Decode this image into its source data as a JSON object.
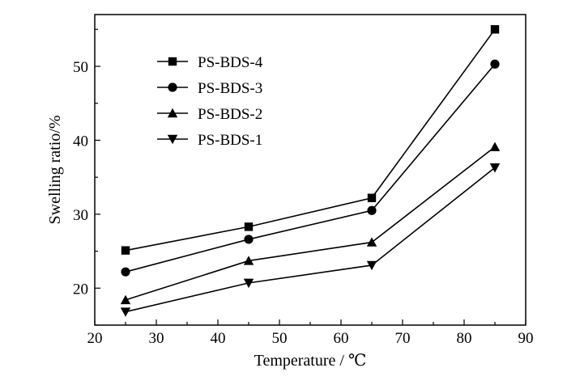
{
  "chart_data": {
    "type": "line",
    "xlabel": "Temperature / ℃",
    "ylabel": "Swelling ratio/%",
    "xlim": [
      20,
      90
    ],
    "ylim": [
      15,
      57
    ],
    "xticks": [
      20,
      30,
      40,
      50,
      60,
      70,
      80,
      90
    ],
    "yticks": [
      20,
      30,
      40,
      50
    ],
    "grid": false,
    "legend_position": "top-left",
    "x": [
      25,
      45,
      65,
      85
    ],
    "series": [
      {
        "name": "PS-BDS-4",
        "marker": "square",
        "values": [
          25.1,
          28.3,
          32.2,
          55.0
        ]
      },
      {
        "name": "PS-BDS-3",
        "marker": "circle",
        "values": [
          22.2,
          26.6,
          30.5,
          50.3
        ]
      },
      {
        "name": "PS-BDS-2",
        "marker": "triangle-up",
        "values": [
          18.4,
          23.7,
          26.2,
          39.1
        ]
      },
      {
        "name": "PS-BDS-1",
        "marker": "triangle-down",
        "values": [
          16.8,
          20.7,
          23.1,
          36.3
        ]
      }
    ]
  }
}
